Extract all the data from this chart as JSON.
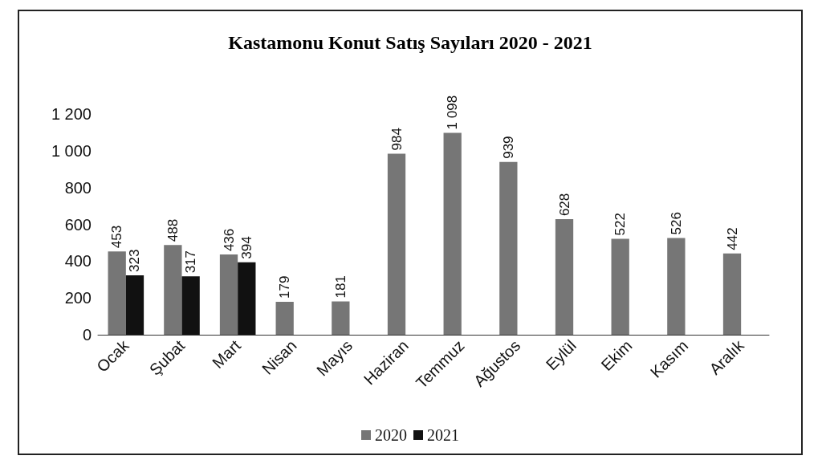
{
  "chart_data": {
    "type": "bar",
    "title": "Kastamonu Konut Satış Sayıları 2020 - 2021",
    "categories": [
      "Ocak",
      "Şubat",
      "Mart",
      "Nisan",
      "Mayıs",
      "Haziran",
      "Temmuz",
      "Ağustos",
      "Eylül",
      "Ekim",
      "Kasım",
      "Aralık"
    ],
    "series": [
      {
        "name": "2020",
        "color": "#767676",
        "values": [
          453,
          488,
          436,
          179,
          181,
          984,
          1098,
          939,
          628,
          522,
          526,
          442
        ],
        "value_labels": [
          "453",
          "488",
          "436",
          "179",
          "181",
          "984",
          "1 098",
          "939",
          "628",
          "522",
          "526",
          "442"
        ]
      },
      {
        "name": "2021",
        "color": "#111111",
        "values": [
          323,
          317,
          394,
          null,
          null,
          null,
          null,
          null,
          null,
          null,
          null,
          null
        ],
        "value_labels": [
          "323",
          "317",
          "394",
          null,
          null,
          null,
          null,
          null,
          null,
          null,
          null,
          null
        ]
      }
    ],
    "ylim": [
      0,
      1200
    ],
    "yticks": [
      0,
      200,
      400,
      600,
      800,
      {
        "value": 1000,
        "label": "1 000"
      },
      {
        "value": 1200,
        "label": "1 200"
      }
    ],
    "grid": false,
    "legend": "bottom"
  }
}
